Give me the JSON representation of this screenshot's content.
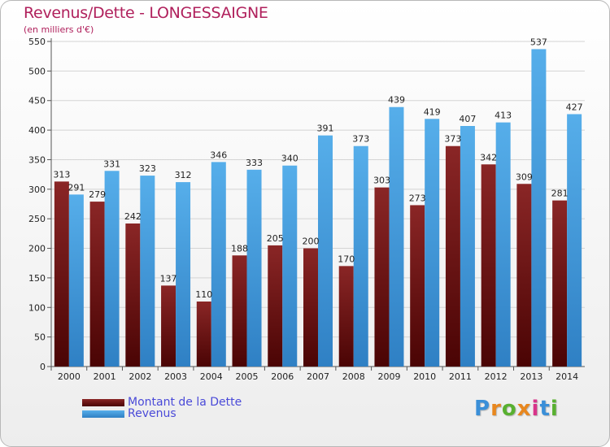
{
  "title": "Revenus/Dette - LONGESSAIGNE",
  "subtitle": "(en milliers d'€)",
  "logo": [
    "P",
    "r",
    "o",
    "x",
    "i",
    "t",
    "i"
  ],
  "logo_colors": [
    "#3a8fd8",
    "#e8871e",
    "#58b030",
    "#e8871e",
    "#d8348a",
    "#3a8fd8",
    "#58b030"
  ],
  "chart_data": {
    "type": "bar",
    "categories": [
      "2000",
      "2001",
      "2002",
      "2003",
      "2004",
      "2005",
      "2006",
      "2007",
      "2008",
      "2009",
      "2010",
      "2011",
      "2012",
      "2013",
      "2014"
    ],
    "series": [
      {
        "name": "Montant de la Dette",
        "color": "#6e1414",
        "values": [
          313,
          279,
          242,
          137,
          110,
          188,
          205,
          200,
          170,
          303,
          273,
          373,
          342,
          309,
          281
        ]
      },
      {
        "name": "Revenus",
        "color": "#4aa0e0",
        "values": [
          291,
          331,
          323,
          312,
          346,
          333,
          340,
          391,
          373,
          439,
          419,
          407,
          413,
          537,
          427
        ]
      }
    ],
    "ylim": [
      0,
      550
    ],
    "yticks": [
      0,
      50,
      100,
      150,
      200,
      250,
      300,
      350,
      400,
      450,
      500,
      550
    ],
    "grid": true,
    "legend": "bottom-left"
  }
}
